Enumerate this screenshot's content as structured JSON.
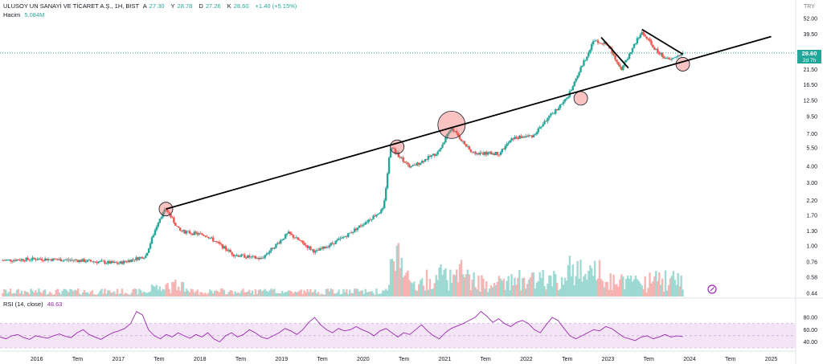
{
  "header": {
    "symbol": "ULUSOY UN SANAYİ VE TİCARET A.Ş., 1H, BIST",
    "o_label": "A",
    "o_value": "27.30",
    "h_label": "Y",
    "h_value": "28.78",
    "l_label": "D",
    "l_value": "27.26",
    "c_label": "K",
    "c_value": "28.60",
    "change": "+1.40 (+5.15%)",
    "volume_label": "Hacim",
    "volume_value": "5.084M",
    "currency": "TRY"
  },
  "price_badge": {
    "price": "28.60",
    "countdown": "2d 7h"
  },
  "rsi_header": {
    "label": "RSI (14, close)",
    "value": "48.63"
  },
  "colors": {
    "up": "#26a69a",
    "down": "#ef5350",
    "rsi_line": "#9c27b0",
    "rsi_band": "#f3e5f5",
    "trend": "#000000"
  },
  "chart_data": {
    "type": "candlestick",
    "scale": "log",
    "ylim": [
      0.44,
      52
    ],
    "y_ticks": [
      "52.00",
      "39.50",
      "28.60",
      "21.50",
      "16.50",
      "12.50",
      "9.50",
      "7.00",
      "5.50",
      "4.00",
      "3.00",
      "2.20",
      "1.70",
      "1.30",
      "1.00",
      "0.76",
      "0.58",
      "0.44"
    ],
    "x_ticks": [
      "2016",
      "Tem",
      "2017",
      "Tem",
      "2018",
      "Tem",
      "2019",
      "Tem",
      "2020",
      "Tem",
      "2021",
      "Tem",
      "2022",
      "Tem",
      "2023",
      "Tem",
      "2024",
      "Tem",
      "2025"
    ],
    "series": [
      {
        "x": "2015-08",
        "y": 0.78
      },
      {
        "x": "2016-01",
        "y": 0.8
      },
      {
        "x": "2016-07",
        "y": 0.78
      },
      {
        "x": "2017-01",
        "y": 0.74
      },
      {
        "x": "2017-05",
        "y": 0.84
      },
      {
        "x": "2017-07",
        "y": 1.6
      },
      {
        "x": "2017-08",
        "y": 1.9
      },
      {
        "x": "2017-10",
        "y": 1.3
      },
      {
        "x": "2018-02",
        "y": 1.2
      },
      {
        "x": "2018-06",
        "y": 0.86
      },
      {
        "x": "2018-10",
        "y": 0.8
      },
      {
        "x": "2019-02",
        "y": 1.25
      },
      {
        "x": "2019-06",
        "y": 0.9
      },
      {
        "x": "2019-10",
        "y": 1.15
      },
      {
        "x": "2020-02",
        "y": 1.6
      },
      {
        "x": "2020-04",
        "y": 1.9
      },
      {
        "x": "2020-05",
        "y": 5.6
      },
      {
        "x": "2020-08",
        "y": 3.9
      },
      {
        "x": "2020-12",
        "y": 5.1
      },
      {
        "x": "2021-02",
        "y": 7.8
      },
      {
        "x": "2021-05",
        "y": 5.0
      },
      {
        "x": "2021-09",
        "y": 5.0
      },
      {
        "x": "2021-11",
        "y": 6.5
      },
      {
        "x": "2022-02",
        "y": 6.8
      },
      {
        "x": "2022-04",
        "y": 9.0
      },
      {
        "x": "2022-07",
        "y": 13.0
      },
      {
        "x": "2022-09",
        "y": 22.0
      },
      {
        "x": "2022-11",
        "y": 36.0
      },
      {
        "x": "2023-01",
        "y": 33.0
      },
      {
        "x": "2023-03",
        "y": 21.5
      },
      {
        "x": "2023-05",
        "y": 34.0
      },
      {
        "x": "2023-06",
        "y": 41.0
      },
      {
        "x": "2023-08",
        "y": 30.0
      },
      {
        "x": "2023-10",
        "y": 25.0
      },
      {
        "x": "2023-12",
        "y": 28.6
      }
    ],
    "last_price": 28.6,
    "circles": [
      {
        "x": "2017-08",
        "y": 1.9,
        "size": "small"
      },
      {
        "x": "2020-06",
        "y": 5.6,
        "size": "small"
      },
      {
        "x": "2021-02",
        "y": 8.2,
        "size": "large"
      },
      {
        "x": "2022-09",
        "y": 13.0,
        "size": "small"
      },
      {
        "x": "2023-12",
        "y": 23.5,
        "size": "small"
      }
    ],
    "trendlines": [
      {
        "x1": "2017-08",
        "y1": 1.9,
        "x2": "2025-01",
        "y2": 38.0
      },
      {
        "x1": "2022-12",
        "y1": 37.5,
        "x2": "2023-04",
        "y2": 22.0
      },
      {
        "x1": "2023-06",
        "y1": 43.0,
        "x2": "2023-12",
        "y2": 28.0
      }
    ],
    "rsi": {
      "ylim": [
        30,
        100
      ],
      "ticks": [
        "80.00",
        "60.00",
        "40.00"
      ],
      "band": [
        30,
        70
      ],
      "values": [
        48,
        45,
        50,
        52,
        47,
        44,
        50,
        48,
        46,
        50,
        53,
        49,
        47,
        55,
        60,
        52,
        48,
        44,
        50,
        55,
        58,
        62,
        70,
        90,
        84,
        60,
        50,
        45,
        52,
        48,
        55,
        50,
        46,
        52,
        48,
        55,
        45,
        40,
        50,
        55,
        48,
        52,
        60,
        55,
        48,
        45,
        50,
        55,
        62,
        58,
        52,
        60,
        72,
        80,
        68,
        60,
        55,
        62,
        58,
        60,
        65,
        60,
        56,
        50,
        58,
        62,
        55,
        48,
        55,
        52,
        60,
        68,
        58,
        50,
        45,
        55,
        62,
        66,
        70,
        75,
        80,
        90,
        82,
        72,
        78,
        70,
        65,
        72,
        75,
        70,
        60,
        55,
        68,
        80,
        75,
        62,
        50,
        45,
        50,
        55,
        60,
        58,
        65,
        62,
        55,
        48,
        45,
        42,
        48,
        50,
        45,
        48,
        52,
        48,
        50,
        48.63
      ]
    }
  }
}
